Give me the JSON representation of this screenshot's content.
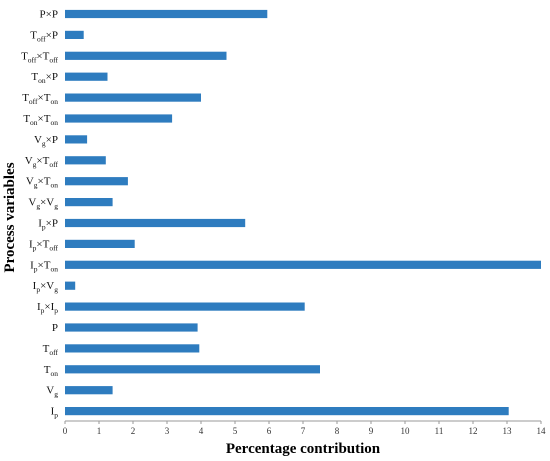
{
  "chart_data": {
    "type": "bar",
    "orientation": "horizontal",
    "xlabel": "Percentage contribution",
    "ylabel": "Process variables",
    "xlim": [
      0,
      14
    ],
    "xticks": [
      0,
      1,
      2,
      3,
      4,
      5,
      6,
      7,
      8,
      9,
      10,
      11,
      12,
      13,
      14
    ],
    "bar_color": "#2e7cbf",
    "grid": false,
    "categories": [
      {
        "parts": [
          [
            "P",
            null
          ],
          [
            "×",
            null
          ],
          [
            "P",
            null
          ]
        ]
      },
      {
        "parts": [
          [
            "T",
            "off"
          ],
          [
            "×",
            null
          ],
          [
            "P",
            null
          ]
        ]
      },
      {
        "parts": [
          [
            "T",
            "off"
          ],
          [
            "×",
            null
          ],
          [
            "T",
            "off"
          ]
        ]
      },
      {
        "parts": [
          [
            "T",
            "on"
          ],
          [
            "×",
            null
          ],
          [
            "P",
            null
          ]
        ]
      },
      {
        "parts": [
          [
            "T",
            "off"
          ],
          [
            "×",
            null
          ],
          [
            "T",
            "on"
          ]
        ]
      },
      {
        "parts": [
          [
            "T",
            "on"
          ],
          [
            "×",
            null
          ],
          [
            "T",
            "on"
          ]
        ]
      },
      {
        "parts": [
          [
            "V",
            "g"
          ],
          [
            "×",
            null
          ],
          [
            "P",
            null
          ]
        ]
      },
      {
        "parts": [
          [
            "V",
            "g"
          ],
          [
            "×",
            null
          ],
          [
            "T",
            "off"
          ]
        ]
      },
      {
        "parts": [
          [
            "V",
            "g"
          ],
          [
            "×",
            null
          ],
          [
            "T",
            "on"
          ]
        ]
      },
      {
        "parts": [
          [
            "V",
            "g"
          ],
          [
            "×",
            null
          ],
          [
            "V",
            "g"
          ]
        ]
      },
      {
        "parts": [
          [
            "I",
            "p"
          ],
          [
            "×",
            null
          ],
          [
            "P",
            null
          ]
        ]
      },
      {
        "parts": [
          [
            "I",
            "p"
          ],
          [
            "×",
            null
          ],
          [
            "T",
            "off"
          ]
        ]
      },
      {
        "parts": [
          [
            "I",
            "p"
          ],
          [
            "×",
            null
          ],
          [
            "T",
            "on"
          ]
        ]
      },
      {
        "parts": [
          [
            "I",
            "p"
          ],
          [
            "×",
            null
          ],
          [
            "V",
            "g"
          ]
        ]
      },
      {
        "parts": [
          [
            "I",
            "p"
          ],
          [
            "×",
            null
          ],
          [
            "I",
            "p"
          ]
        ]
      },
      {
        "parts": [
          [
            "P",
            null
          ]
        ]
      },
      {
        "parts": [
          [
            "T",
            "off"
          ]
        ]
      },
      {
        "parts": [
          [
            "T",
            "on"
          ]
        ]
      },
      {
        "parts": [
          [
            "V",
            "g"
          ]
        ]
      },
      {
        "parts": [
          [
            "I",
            "p"
          ]
        ]
      }
    ],
    "values": [
      5.95,
      0.55,
      4.75,
      1.25,
      4.0,
      3.15,
      0.65,
      1.2,
      1.85,
      1.4,
      5.3,
      2.05,
      14.0,
      0.3,
      7.05,
      3.9,
      3.95,
      7.5,
      1.4,
      13.05
    ]
  }
}
